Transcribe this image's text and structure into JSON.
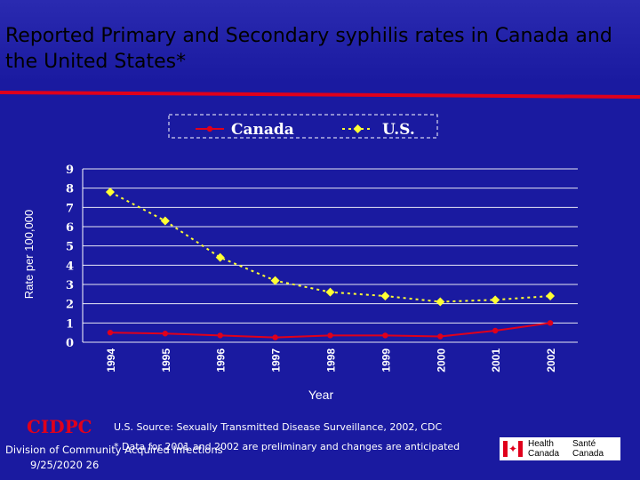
{
  "slide": {
    "title": "Reported Primary and Secondary syphilis rates in Canada and the United States*"
  },
  "chart_data": {
    "type": "line",
    "title": "",
    "xlabel": "Year",
    "ylabel": "Rate per 100,000",
    "categories": [
      "1994",
      "1995",
      "1996",
      "1997",
      "1998",
      "1999",
      "2000",
      "2001",
      "2002"
    ],
    "ylim": [
      0,
      9
    ],
    "yticks": [
      "0",
      "1",
      "2",
      "3",
      "4",
      "5",
      "6",
      "7",
      "8",
      "9"
    ],
    "grid": true,
    "legend_position": "top",
    "series": [
      {
        "name": "Canada",
        "values": [
          0.5,
          0.45,
          0.35,
          0.25,
          0.35,
          0.35,
          0.3,
          0.6,
          1.0
        ],
        "color": "#e0001b",
        "marker": "circle",
        "line": "solid"
      },
      {
        "name": "U.S.",
        "values": [
          7.8,
          6.3,
          4.4,
          3.2,
          2.6,
          2.4,
          2.1,
          2.2,
          2.4
        ],
        "color": "#ffff33",
        "marker": "diamond",
        "line": "dotted"
      }
    ]
  },
  "footer": {
    "org": "CIDPC",
    "source": "U.S. Source: Sexually Transmitted Disease Surveillance, 2002, CDC",
    "division": "Division of Community Acquired Infections",
    "note": "* Data for 2001 and 2002 are preliminary and changes are anticipated",
    "date": "9/25/2020 26",
    "logo_health": "Health",
    "logo_sante": "Santé",
    "logo_canada": "Canada",
    "logo_canada_fr": "Canada"
  },
  "colors": {
    "background": "#1a1aa0",
    "accent": "#e0001b",
    "grid": "#ffffff"
  }
}
